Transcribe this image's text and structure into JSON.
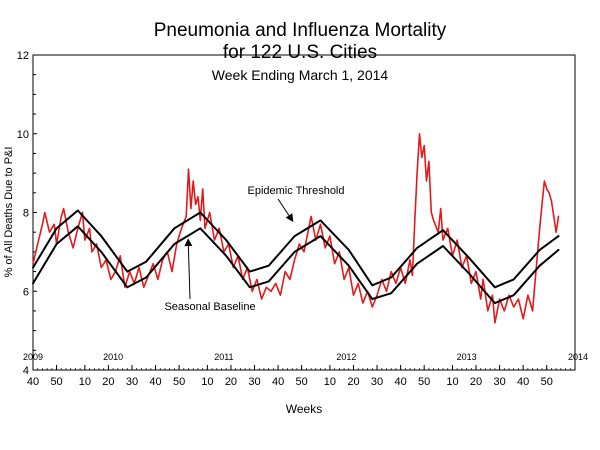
{
  "chart_data": {
    "type": "line",
    "title_line1": "Pneumonia and Influenza Mortality",
    "title_line2": "for 122 U.S. Cities",
    "subtitle": "Week Ending March 1, 2014",
    "xlabel": "Weeks",
    "ylabel": "% of All Deaths Due to P&I",
    "ylim": [
      4,
      12
    ],
    "y_ticks": [
      "4",
      "6",
      "8",
      "10",
      "12"
    ],
    "x_range_weeks": [
      0,
      230
    ],
    "x_ticks": [
      {
        "week": 0,
        "label": "40"
      },
      {
        "week": 10,
        "label": "50"
      },
      {
        "week": 22,
        "label": "10"
      },
      {
        "week": 32,
        "label": "20"
      },
      {
        "week": 42,
        "label": "30"
      },
      {
        "week": 52,
        "label": "40"
      },
      {
        "week": 62,
        "label": "50"
      },
      {
        "week": 74,
        "label": "10"
      },
      {
        "week": 84,
        "label": "20"
      },
      {
        "week": 94,
        "label": "30"
      },
      {
        "week": 104,
        "label": "40"
      },
      {
        "week": 114,
        "label": "50"
      },
      {
        "week": 126,
        "label": "10"
      },
      {
        "week": 136,
        "label": "20"
      },
      {
        "week": 146,
        "label": "30"
      },
      {
        "week": 156,
        "label": "40"
      },
      {
        "week": 166,
        "label": "50"
      },
      {
        "week": 178,
        "label": "10"
      },
      {
        "week": 188,
        "label": "20"
      },
      {
        "week": 198,
        "label": "30"
      },
      {
        "week": 208,
        "label": "40"
      },
      {
        "week": 218,
        "label": "50"
      }
    ],
    "year_labels": [
      {
        "week": 0,
        "label": "2009"
      },
      {
        "week": 34,
        "label": "2010"
      },
      {
        "week": 81,
        "label": "2011"
      },
      {
        "week": 133,
        "label": "2012"
      },
      {
        "week": 184,
        "label": "2013"
      },
      {
        "week": 234,
        "label": "2014"
      }
    ],
    "annotations": [
      {
        "text": "Epidemic Threshold",
        "week": 110,
        "value": 7.8
      },
      {
        "text": "Seasonal Baseline",
        "week": 65,
        "value": 7.5
      }
    ],
    "series": [
      {
        "color": "#e31a1c",
        "style": "observed",
        "points": [
          [
            0,
            6.7
          ],
          [
            2,
            7.2
          ],
          [
            4,
            7.7
          ],
          [
            5,
            8.0
          ],
          [
            7,
            7.5
          ],
          [
            9,
            7.7
          ],
          [
            10,
            7.2
          ],
          [
            12,
            7.9
          ],
          [
            13,
            8.1
          ],
          [
            15,
            7.5
          ],
          [
            17,
            7.1
          ],
          [
            19,
            7.6
          ],
          [
            21,
            8.0
          ],
          [
            22,
            7.3
          ],
          [
            24,
            7.6
          ],
          [
            25,
            7.0
          ],
          [
            27,
            7.2
          ],
          [
            29,
            6.6
          ],
          [
            31,
            6.8
          ],
          [
            33,
            6.3
          ],
          [
            35,
            6.5
          ],
          [
            37,
            6.9
          ],
          [
            39,
            6.1
          ],
          [
            41,
            6.5
          ],
          [
            43,
            6.2
          ],
          [
            45,
            6.6
          ],
          [
            47,
            6.1
          ],
          [
            49,
            6.4
          ],
          [
            51,
            6.7
          ],
          [
            53,
            6.3
          ],
          [
            55,
            6.8
          ],
          [
            57,
            7.0
          ],
          [
            59,
            6.5
          ],
          [
            61,
            7.2
          ],
          [
            63,
            7.6
          ],
          [
            65,
            7.9
          ],
          [
            66,
            9.1
          ],
          [
            67,
            8.1
          ],
          [
            68,
            8.8
          ],
          [
            69,
            8.2
          ],
          [
            70,
            8.4
          ],
          [
            71,
            7.8
          ],
          [
            72,
            8.6
          ],
          [
            73,
            7.6
          ],
          [
            75,
            8.0
          ],
          [
            77,
            7.3
          ],
          [
            79,
            7.6
          ],
          [
            81,
            7.0
          ],
          [
            83,
            7.2
          ],
          [
            85,
            6.6
          ],
          [
            87,
            6.9
          ],
          [
            89,
            6.3
          ],
          [
            91,
            6.6
          ],
          [
            93,
            6.0
          ],
          [
            95,
            6.3
          ],
          [
            97,
            5.8
          ],
          [
            99,
            6.1
          ],
          [
            101,
            6.0
          ],
          [
            103,
            6.2
          ],
          [
            105,
            5.9
          ],
          [
            107,
            6.5
          ],
          [
            109,
            6.3
          ],
          [
            111,
            6.8
          ],
          [
            113,
            7.2
          ],
          [
            115,
            7.0
          ],
          [
            117,
            7.6
          ],
          [
            118,
            7.9
          ],
          [
            120,
            7.3
          ],
          [
            122,
            7.7
          ],
          [
            124,
            7.1
          ],
          [
            126,
            7.4
          ],
          [
            128,
            6.7
          ],
          [
            130,
            7.0
          ],
          [
            132,
            6.3
          ],
          [
            134,
            6.6
          ],
          [
            136,
            5.9
          ],
          [
            138,
            6.2
          ],
          [
            140,
            5.7
          ],
          [
            142,
            6.0
          ],
          [
            144,
            5.6
          ],
          [
            146,
            5.9
          ],
          [
            148,
            6.3
          ],
          [
            150,
            6.0
          ],
          [
            152,
            6.5
          ],
          [
            154,
            6.2
          ],
          [
            156,
            6.6
          ],
          [
            158,
            6.2
          ],
          [
            160,
            6.8
          ],
          [
            161,
            6.4
          ],
          [
            162,
            7.8
          ],
          [
            163,
            9.0
          ],
          [
            164,
            10.0
          ],
          [
            165,
            9.4
          ],
          [
            166,
            9.7
          ],
          [
            167,
            8.8
          ],
          [
            168,
            9.3
          ],
          [
            169,
            8.0
          ],
          [
            170,
            7.8
          ],
          [
            172,
            7.5
          ],
          [
            173,
            8.1
          ],
          [
            174,
            7.3
          ],
          [
            176,
            7.6
          ],
          [
            178,
            6.9
          ],
          [
            180,
            7.3
          ],
          [
            182,
            6.6
          ],
          [
            184,
            6.9
          ],
          [
            186,
            6.2
          ],
          [
            188,
            6.5
          ],
          [
            190,
            5.8
          ],
          [
            191,
            6.3
          ],
          [
            193,
            5.5
          ],
          [
            195,
            5.9
          ],
          [
            196,
            5.2
          ],
          [
            198,
            5.8
          ],
          [
            200,
            5.5
          ],
          [
            202,
            5.9
          ],
          [
            204,
            5.6
          ],
          [
            206,
            5.8
          ],
          [
            208,
            5.3
          ],
          [
            210,
            5.9
          ],
          [
            212,
            5.5
          ],
          [
            213,
            6.2
          ],
          [
            214,
            6.9
          ],
          [
            215,
            7.6
          ],
          [
            216,
            8.2
          ],
          [
            217,
            8.8
          ],
          [
            218,
            8.6
          ],
          [
            219,
            8.5
          ],
          [
            220,
            8.3
          ],
          [
            221,
            7.9
          ],
          [
            222,
            7.5
          ],
          [
            223,
            7.9
          ]
        ]
      },
      {
        "color": "#000000",
        "style": "epidemic-threshold",
        "points": [
          [
            0,
            6.6
          ],
          [
            10,
            7.6
          ],
          [
            19,
            8.05
          ],
          [
            29,
            7.4
          ],
          [
            40,
            6.5
          ],
          [
            48,
            6.75
          ],
          [
            60,
            7.6
          ],
          [
            71,
            8.0
          ],
          [
            82,
            7.3
          ],
          [
            92,
            6.5
          ],
          [
            100,
            6.65
          ],
          [
            111,
            7.4
          ],
          [
            122,
            7.8
          ],
          [
            134,
            7.05
          ],
          [
            144,
            6.15
          ],
          [
            152,
            6.35
          ],
          [
            163,
            7.1
          ],
          [
            174,
            7.55
          ],
          [
            185,
            6.85
          ],
          [
            196,
            6.1
          ],
          [
            204,
            6.3
          ],
          [
            215,
            7.05
          ],
          [
            223,
            7.4
          ]
        ]
      },
      {
        "color": "#000000",
        "style": "seasonal-baseline",
        "points": [
          [
            0,
            6.2
          ],
          [
            10,
            7.2
          ],
          [
            19,
            7.65
          ],
          [
            29,
            7.0
          ],
          [
            40,
            6.1
          ],
          [
            48,
            6.35
          ],
          [
            60,
            7.2
          ],
          [
            71,
            7.6
          ],
          [
            82,
            6.9
          ],
          [
            92,
            6.1
          ],
          [
            100,
            6.25
          ],
          [
            111,
            7.0
          ],
          [
            122,
            7.4
          ],
          [
            134,
            6.65
          ],
          [
            144,
            5.8
          ],
          [
            152,
            5.95
          ],
          [
            163,
            6.7
          ],
          [
            174,
            7.15
          ],
          [
            185,
            6.45
          ],
          [
            196,
            5.7
          ],
          [
            204,
            5.9
          ],
          [
            215,
            6.65
          ],
          [
            223,
            7.05
          ]
        ]
      }
    ]
  }
}
